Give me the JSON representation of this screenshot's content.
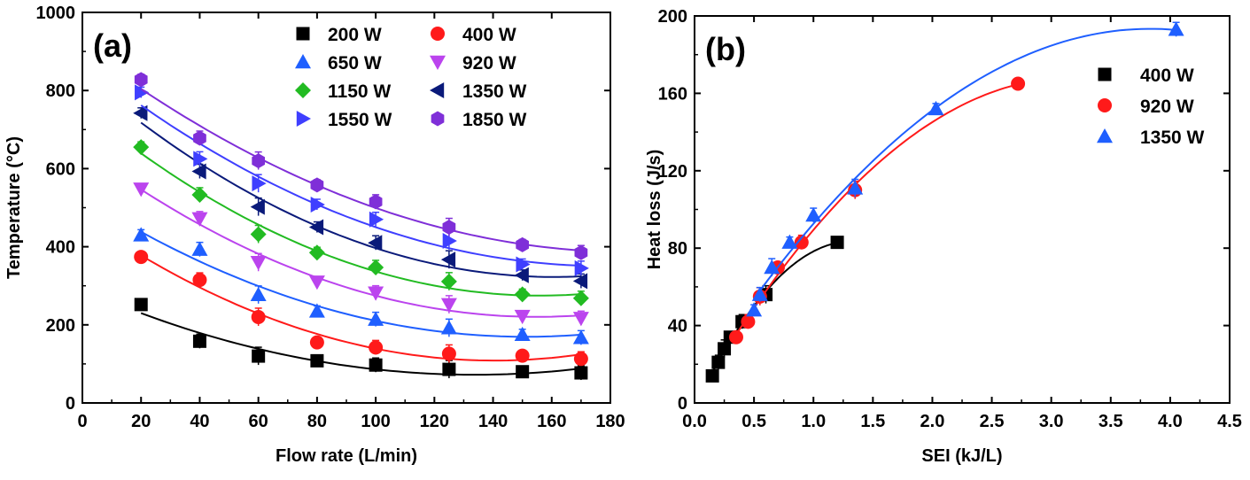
{
  "chart_data": [
    {
      "panel_label": "(a)",
      "type": "scatter",
      "xlabel": "Flow rate (L/min)",
      "ylabel": "Temperature (°C)",
      "xlim": [
        0,
        180
      ],
      "ylim": [
        0,
        1000
      ],
      "xticks": [
        "0",
        "20",
        "40",
        "60",
        "80",
        "100",
        "120",
        "140",
        "160",
        "180"
      ],
      "yticks": [
        "0",
        "200",
        "400",
        "600",
        "800",
        "1000"
      ],
      "grid": false,
      "legend_position": "top-right",
      "x": [
        20,
        40,
        60,
        80,
        100,
        125,
        150,
        170
      ],
      "series": [
        {
          "name": "200 W",
          "marker": "square",
          "color": "#000000",
          "values": [
            252,
            158,
            120,
            108,
            97,
            86,
            80,
            77
          ]
        },
        {
          "name": "400 W",
          "marker": "circle",
          "color": "#ff1a1a",
          "values": [
            374,
            315,
            220,
            155,
            142,
            126,
            121,
            113
          ]
        },
        {
          "name": "650 W",
          "marker": "tri-up",
          "color": "#1f5fff",
          "values": [
            430,
            393,
            277,
            235,
            214,
            192,
            175,
            167
          ]
        },
        {
          "name": "920 W",
          "marker": "tri-down",
          "color": "#bb44ee",
          "values": [
            548,
            472,
            360,
            310,
            282,
            252,
            222,
            217
          ]
        },
        {
          "name": "1150 W",
          "marker": "diamond",
          "color": "#22bb22",
          "values": [
            655,
            533,
            432,
            385,
            347,
            311,
            278,
            268
          ]
        },
        {
          "name": "1350 W",
          "marker": "tri-left",
          "color": "#0a1a7a",
          "values": [
            742,
            593,
            502,
            450,
            410,
            367,
            327,
            312
          ]
        },
        {
          "name": "1550 W",
          "marker": "tri-right",
          "color": "#3f3fff",
          "values": [
            795,
            625,
            562,
            508,
            470,
            415,
            355,
            345
          ]
        },
        {
          "name": "1850 W",
          "marker": "hexagon",
          "color": "#7f2fd8",
          "values": [
            828,
            678,
            620,
            558,
            515,
            450,
            405,
            385
          ]
        }
      ]
    },
    {
      "panel_label": "(b)",
      "type": "scatter",
      "xlabel": "SEI (kJ/L)",
      "ylabel": "Heat loss (J/s)",
      "xlim": [
        0.0,
        4.5
      ],
      "ylim": [
        0,
        200
      ],
      "xticks": [
        "0.0",
        "0.5",
        "1.0",
        "1.5",
        "2.0",
        "2.5",
        "3.0",
        "3.5",
        "4.0",
        "4.5"
      ],
      "yticks": [
        "0",
        "40",
        "80",
        "120",
        "160",
        "200"
      ],
      "grid": false,
      "legend_position": "top-right",
      "series": [
        {
          "name": "400 W",
          "marker": "square",
          "color": "#000000",
          "x": [
            0.15,
            0.2,
            0.25,
            0.3,
            0.4,
            0.6,
            1.2
          ],
          "values": [
            14,
            21,
            28,
            34,
            42,
            56,
            83
          ]
        },
        {
          "name": "920 W",
          "marker": "circle",
          "color": "#ff1a1a",
          "x": [
            0.35,
            0.45,
            0.55,
            0.7,
            0.9,
            1.35,
            2.72
          ],
          "values": [
            34,
            42,
            55,
            70,
            83,
            110,
            165
          ]
        },
        {
          "name": "1350 W",
          "marker": "tri-up",
          "color": "#1f5fff",
          "x": [
            0.5,
            0.55,
            0.65,
            0.8,
            1.0,
            1.35,
            2.03,
            4.05
          ],
          "values": [
            48,
            56,
            70,
            83,
            97,
            111,
            152,
            193
          ]
        }
      ]
    }
  ]
}
